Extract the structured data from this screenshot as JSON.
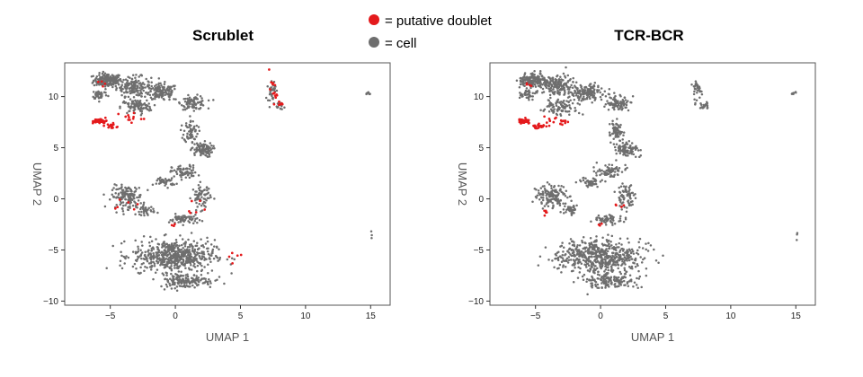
{
  "legend": {
    "items": [
      {
        "label": "= putative doublet",
        "color": "#e41a1c",
        "icon": "red-dot-icon"
      },
      {
        "label": "= cell",
        "color": "#6e6e6e",
        "icon": "gray-dot-icon"
      }
    ]
  },
  "chart_data": [
    {
      "type": "scatter",
      "title": "Scrublet",
      "xlabel": "UMAP 1",
      "ylabel": "UMAP 2",
      "xlim": [
        -8.5,
        16.5
      ],
      "ylim": [
        -10.4,
        13.3
      ],
      "xticks": [
        -5,
        0,
        5,
        10,
        15
      ],
      "xtick_labels": [
        "−5",
        "0",
        "5",
        "10",
        "15"
      ],
      "yticks": [
        -10,
        -5,
        0,
        5,
        10
      ],
      "ytick_labels": [
        "−10",
        "−5",
        "0",
        "5",
        "10"
      ],
      "grid": false,
      "series": [
        {
          "name": "cell",
          "color": "#6e6e6e",
          "clusters": [
            {
              "center": [
                -5.2,
                11.6
              ],
              "spread": [
                0.9,
                0.55
              ],
              "count": 160
            },
            {
              "center": [
                -3.2,
                11.0
              ],
              "spread": [
                1.1,
                0.8
              ],
              "count": 160
            },
            {
              "center": [
                -1.0,
                10.4
              ],
              "spread": [
                1.0,
                0.7
              ],
              "count": 130
            },
            {
              "center": [
                1.4,
                9.4
              ],
              "spread": [
                0.8,
                0.55
              ],
              "count": 90
            },
            {
              "center": [
                -3.0,
                9.0
              ],
              "spread": [
                1.0,
                0.6
              ],
              "count": 90
            },
            {
              "center": [
                -5.8,
                10.2
              ],
              "spread": [
                0.5,
                0.4
              ],
              "count": 40
            },
            {
              "center": [
                1.2,
                6.6
              ],
              "spread": [
                0.45,
                0.9
              ],
              "count": 60
            },
            {
              "center": [
                2.0,
                4.8
              ],
              "spread": [
                0.7,
                0.6
              ],
              "count": 90
            },
            {
              "center": [
                0.7,
                2.6
              ],
              "spread": [
                0.8,
                0.55
              ],
              "count": 70
            },
            {
              "center": [
                -0.8,
                1.7
              ],
              "spread": [
                0.7,
                0.4
              ],
              "count": 40
            },
            {
              "center": [
                -3.7,
                0.2
              ],
              "spread": [
                1.0,
                0.9
              ],
              "count": 140
            },
            {
              "center": [
                -2.3,
                -1.1
              ],
              "spread": [
                0.6,
                0.4
              ],
              "count": 40
            },
            {
              "center": [
                2.0,
                0.2
              ],
              "spread": [
                0.6,
                1.0
              ],
              "count": 70
            },
            {
              "center": [
                0.6,
                -2.0
              ],
              "spread": [
                0.9,
                0.4
              ],
              "count": 60
            },
            {
              "center": [
                -0.1,
                -5.6
              ],
              "spread": [
                2.6,
                1.3
              ],
              "count": 560
            },
            {
              "center": [
                0.8,
                -8.0
              ],
              "spread": [
                1.8,
                0.6
              ],
              "count": 150
            },
            {
              "center": [
                7.4,
                10.6
              ],
              "spread": [
                0.25,
                0.9
              ],
              "count": 30
            },
            {
              "center": [
                8.0,
                9.1
              ],
              "spread": [
                0.3,
                0.25
              ],
              "count": 16
            },
            {
              "center": [
                14.8,
                10.3
              ],
              "spread": [
                0.2,
                0.12
              ],
              "count": 8
            },
            {
              "center": [
                15.1,
                -3.6
              ],
              "spread": [
                0.05,
                0.55
              ],
              "count": 3
            }
          ]
        },
        {
          "name": "putative doublet",
          "color": "#e41a1c",
          "clusters": [
            {
              "center": [
                -5.8,
                7.6
              ],
              "spread": [
                0.45,
                0.2
              ],
              "count": 42
            },
            {
              "center": [
                -4.9,
                7.1
              ],
              "spread": [
                0.4,
                0.25
              ],
              "count": 16
            },
            {
              "center": [
                -3.6,
                8.0
              ],
              "spread": [
                0.8,
                0.5
              ],
              "count": 12
            },
            {
              "center": [
                -5.5,
                11.2
              ],
              "spread": [
                0.4,
                0.3
              ],
              "count": 4
            },
            {
              "center": [
                -4.0,
                -0.6
              ],
              "spread": [
                1.0,
                0.5
              ],
              "count": 6
            },
            {
              "center": [
                1.5,
                -0.9
              ],
              "spread": [
                0.7,
                0.7
              ],
              "count": 6
            },
            {
              "center": [
                -0.1,
                -2.6
              ],
              "spread": [
                0.4,
                0.2
              ],
              "count": 3
            },
            {
              "center": [
                4.3,
                -5.5
              ],
              "spread": [
                0.6,
                0.6
              ],
              "count": 5
            },
            {
              "center": [
                7.5,
                10.5
              ],
              "spread": [
                0.25,
                1.0
              ],
              "count": 14
            },
            {
              "center": [
                8.0,
                9.3
              ],
              "spread": [
                0.3,
                0.2
              ],
              "count": 8
            }
          ]
        }
      ]
    },
    {
      "type": "scatter",
      "title": "TCR-BCR",
      "xlabel": "UMAP 1",
      "ylabel": "UMAP 2",
      "xlim": [
        -8.5,
        16.5
      ],
      "ylim": [
        -10.4,
        13.3
      ],
      "xticks": [
        -5,
        0,
        5,
        10,
        15
      ],
      "xtick_labels": [
        "−5",
        "0",
        "5",
        "10",
        "15"
      ],
      "yticks": [
        -10,
        -5,
        0,
        5,
        10
      ],
      "ytick_labels": [
        "−10",
        "−5",
        "0",
        "5",
        "10"
      ],
      "grid": false,
      "series": [
        {
          "name": "cell",
          "color": "#6e6e6e",
          "clusters": [
            {
              "center": [
                -5.2,
                11.6
              ],
              "spread": [
                0.9,
                0.55
              ],
              "count": 160
            },
            {
              "center": [
                -3.2,
                11.0
              ],
              "spread": [
                1.1,
                0.8
              ],
              "count": 160
            },
            {
              "center": [
                -1.0,
                10.4
              ],
              "spread": [
                1.0,
                0.7
              ],
              "count": 130
            },
            {
              "center": [
                1.4,
                9.4
              ],
              "spread": [
                0.8,
                0.55
              ],
              "count": 90
            },
            {
              "center": [
                -3.0,
                9.0
              ],
              "spread": [
                1.0,
                0.6
              ],
              "count": 90
            },
            {
              "center": [
                -5.8,
                10.2
              ],
              "spread": [
                0.5,
                0.4
              ],
              "count": 40
            },
            {
              "center": [
                1.2,
                6.6
              ],
              "spread": [
                0.45,
                0.9
              ],
              "count": 60
            },
            {
              "center": [
                2.0,
                4.8
              ],
              "spread": [
                0.7,
                0.6
              ],
              "count": 90
            },
            {
              "center": [
                0.7,
                2.6
              ],
              "spread": [
                0.8,
                0.55
              ],
              "count": 70
            },
            {
              "center": [
                -0.8,
                1.7
              ],
              "spread": [
                0.7,
                0.4
              ],
              "count": 40
            },
            {
              "center": [
                -3.7,
                0.2
              ],
              "spread": [
                1.0,
                0.9
              ],
              "count": 140
            },
            {
              "center": [
                -2.3,
                -1.1
              ],
              "spread": [
                0.6,
                0.4
              ],
              "count": 40
            },
            {
              "center": [
                2.0,
                0.2
              ],
              "spread": [
                0.6,
                1.0
              ],
              "count": 70
            },
            {
              "center": [
                0.6,
                -2.0
              ],
              "spread": [
                0.9,
                0.4
              ],
              "count": 60
            },
            {
              "center": [
                -0.1,
                -5.6
              ],
              "spread": [
                2.6,
                1.3
              ],
              "count": 560
            },
            {
              "center": [
                0.8,
                -8.0
              ],
              "spread": [
                1.8,
                0.6
              ],
              "count": 150
            },
            {
              "center": [
                7.4,
                10.6
              ],
              "spread": [
                0.25,
                0.9
              ],
              "count": 36
            },
            {
              "center": [
                8.0,
                9.1
              ],
              "spread": [
                0.3,
                0.25
              ],
              "count": 20
            },
            {
              "center": [
                14.8,
                10.3
              ],
              "spread": [
                0.2,
                0.12
              ],
              "count": 8
            },
            {
              "center": [
                15.1,
                -3.6
              ],
              "spread": [
                0.05,
                0.55
              ],
              "count": 3
            }
          ]
        },
        {
          "name": "putative doublet",
          "color": "#e41a1c",
          "clusters": [
            {
              "center": [
                -5.8,
                7.6
              ],
              "spread": [
                0.45,
                0.2
              ],
              "count": 42
            },
            {
              "center": [
                -4.7,
                7.1
              ],
              "spread": [
                0.5,
                0.3
              ],
              "count": 22
            },
            {
              "center": [
                -3.4,
                7.6
              ],
              "spread": [
                0.9,
                0.5
              ],
              "count": 18
            },
            {
              "center": [
                -5.5,
                11.2
              ],
              "spread": [
                0.4,
                0.3
              ],
              "count": 4
            },
            {
              "center": [
                -4.2,
                -1.3
              ],
              "spread": [
                0.8,
                0.4
              ],
              "count": 5
            },
            {
              "center": [
                1.5,
                -0.6
              ],
              "spread": [
                0.7,
                0.6
              ],
              "count": 4
            },
            {
              "center": [
                -0.1,
                -2.6
              ],
              "spread": [
                0.4,
                0.2
              ],
              "count": 3
            }
          ]
        }
      ]
    }
  ]
}
